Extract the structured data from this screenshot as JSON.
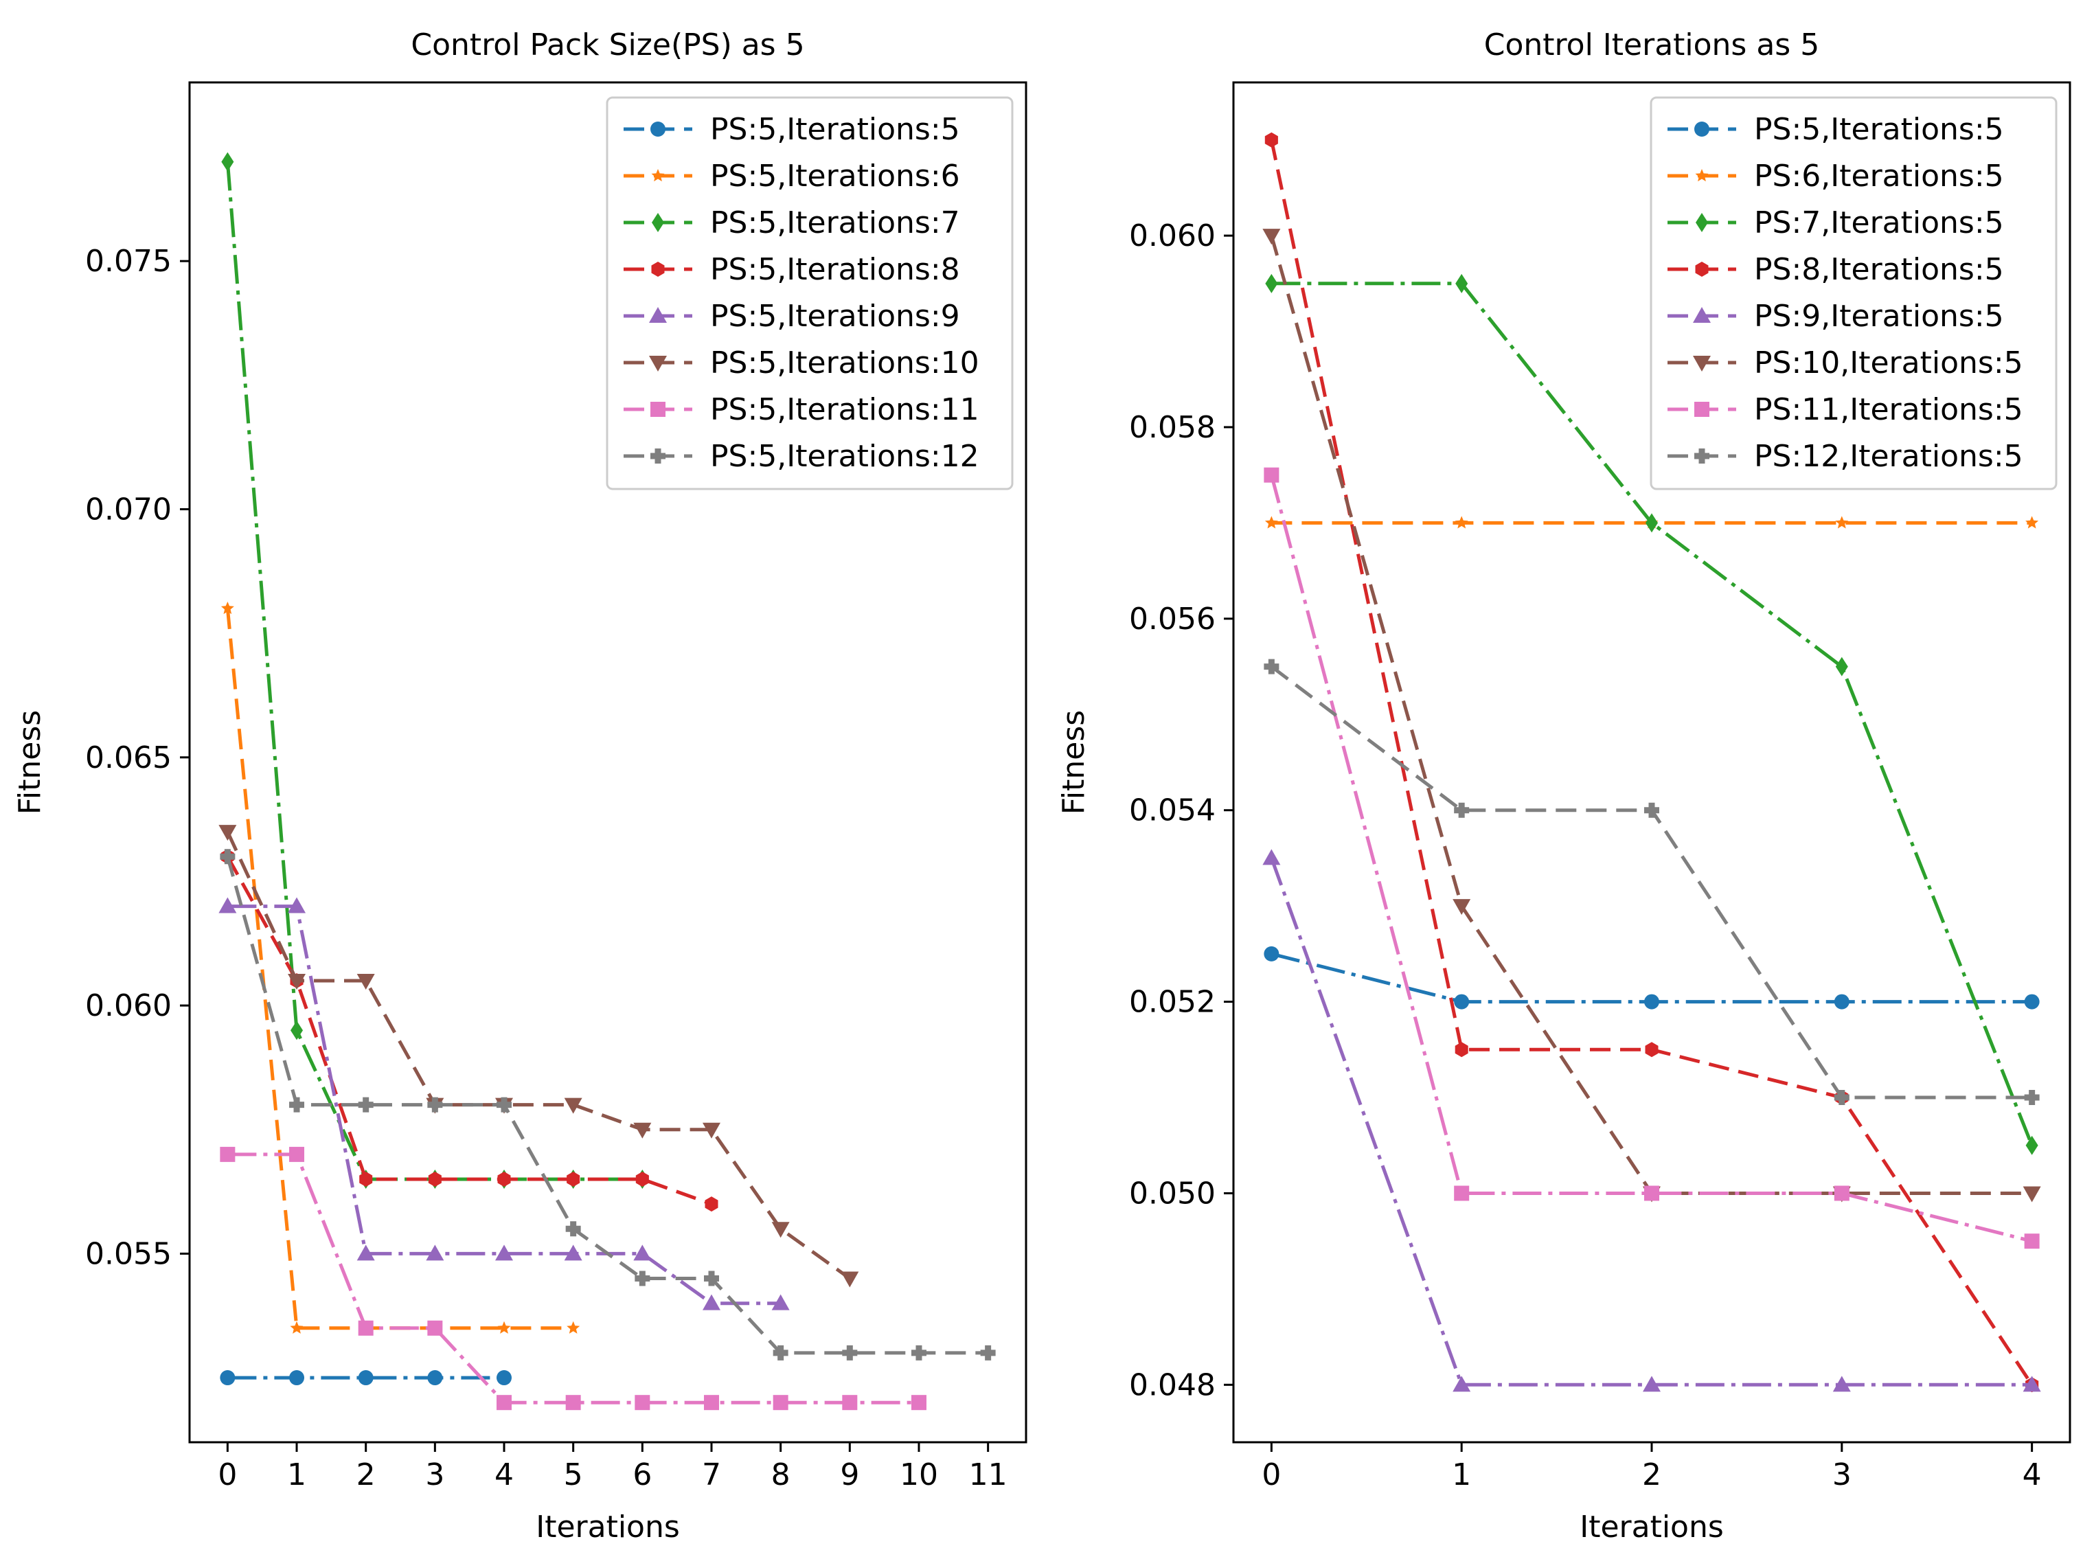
{
  "chart_data": [
    {
      "type": "line",
      "title": "Control Pack Size(PS) as 5",
      "xlabel": "Iterations",
      "ylabel": "Fitness",
      "xlim": [
        -0.55,
        11.55
      ],
      "ylim": [
        0.0512,
        0.0786
      ],
      "xticks": [
        0,
        1,
        2,
        3,
        4,
        5,
        6,
        7,
        8,
        9,
        10,
        11
      ],
      "xtick_labels": [
        "0",
        "1",
        "2",
        "3",
        "4",
        "5",
        "6",
        "7",
        "8",
        "9",
        "10",
        "11"
      ],
      "yticks": [
        0.055,
        0.06,
        0.065,
        0.07,
        0.075
      ],
      "ytick_labels": [
        "0.055",
        "0.060",
        "0.065",
        "0.070",
        "0.075"
      ],
      "grid": false,
      "legend_position": "top-right",
      "series": [
        {
          "name": "PS:5,Iterations:5",
          "color": "#1f77b4",
          "marker": "circle",
          "x": [
            0,
            1,
            2,
            3,
            4
          ],
          "values": [
            0.0525,
            0.0525,
            0.0525,
            0.0525,
            0.0525
          ]
        },
        {
          "name": "PS:5,Iterations:6",
          "color": "#ff7f0e",
          "marker": "star",
          "x": [
            0,
            1,
            2,
            3,
            4,
            5
          ],
          "values": [
            0.068,
            0.0535,
            0.0535,
            0.0535,
            0.0535,
            0.0535
          ]
        },
        {
          "name": "PS:5,Iterations:7",
          "color": "#2ca02c",
          "marker": "diamond",
          "x": [
            0,
            1,
            2,
            3,
            4,
            5,
            6
          ],
          "values": [
            0.077,
            0.0595,
            0.0565,
            0.0565,
            0.0565,
            0.0565,
            0.0565
          ]
        },
        {
          "name": "PS:5,Iterations:8",
          "color": "#d62728",
          "marker": "hexagon",
          "x": [
            0,
            1,
            2,
            3,
            4,
            5,
            6,
            7
          ],
          "values": [
            0.063,
            0.0605,
            0.0565,
            0.0565,
            0.0565,
            0.0565,
            0.0565,
            0.056
          ]
        },
        {
          "name": "PS:5,Iterations:9",
          "color": "#9467bd",
          "marker": "triangle-up",
          "x": [
            0,
            1,
            2,
            3,
            4,
            5,
            6,
            7,
            8
          ],
          "values": [
            0.062,
            0.062,
            0.055,
            0.055,
            0.055,
            0.055,
            0.055,
            0.054,
            0.054
          ]
        },
        {
          "name": "PS:5,Iterations:10",
          "color": "#8c564b",
          "marker": "triangle-down",
          "x": [
            0,
            1,
            2,
            3,
            4,
            5,
            6,
            7,
            8,
            9
          ],
          "values": [
            0.0635,
            0.0605,
            0.0605,
            0.058,
            0.058,
            0.058,
            0.0575,
            0.0575,
            0.0555,
            0.0545
          ]
        },
        {
          "name": "PS:5,Iterations:11",
          "color": "#e377c2",
          "marker": "square",
          "x": [
            0,
            1,
            2,
            3,
            4,
            5,
            6,
            7,
            8,
            9,
            10
          ],
          "values": [
            0.057,
            0.057,
            0.0535,
            0.0535,
            0.052,
            0.052,
            0.052,
            0.052,
            0.052,
            0.052,
            0.052
          ]
        },
        {
          "name": "PS:5,Iterations:12",
          "color": "#7f7f7f",
          "marker": "plus-filled",
          "x": [
            0,
            1,
            2,
            3,
            4,
            5,
            6,
            7,
            8,
            9,
            10,
            11
          ],
          "values": [
            0.063,
            0.058,
            0.058,
            0.058,
            0.058,
            0.0555,
            0.0545,
            0.0545,
            0.053,
            0.053,
            0.053,
            0.053
          ]
        }
      ]
    },
    {
      "type": "line",
      "title": "Control Iterations as 5",
      "xlabel": "Iterations",
      "ylabel": "Fitness",
      "xlim": [
        -0.2,
        4.2
      ],
      "ylim": [
        0.0474,
        0.0616
      ],
      "xticks": [
        0,
        1,
        2,
        3,
        4
      ],
      "xtick_labels": [
        "0",
        "1",
        "2",
        "3",
        "4"
      ],
      "yticks": [
        0.048,
        0.05,
        0.052,
        0.054,
        0.056,
        0.058,
        0.06
      ],
      "ytick_labels": [
        "0.048",
        "0.050",
        "0.052",
        "0.054",
        "0.056",
        "0.058",
        "0.060"
      ],
      "grid": false,
      "legend_position": "top-right",
      "series": [
        {
          "name": "PS:5,Iterations:5",
          "color": "#1f77b4",
          "marker": "circle",
          "x": [
            0,
            1,
            2,
            3,
            4
          ],
          "values": [
            0.0525,
            0.052,
            0.052,
            0.052,
            0.052
          ]
        },
        {
          "name": "PS:6,Iterations:5",
          "color": "#ff7f0e",
          "marker": "star",
          "x": [
            0,
            1,
            2,
            3,
            4
          ],
          "values": [
            0.057,
            0.057,
            0.057,
            0.057,
            0.057
          ]
        },
        {
          "name": "PS:7,Iterations:5",
          "color": "#2ca02c",
          "marker": "diamond",
          "x": [
            0,
            1,
            2,
            3,
            4
          ],
          "values": [
            0.0595,
            0.0595,
            0.057,
            0.0555,
            0.0505
          ]
        },
        {
          "name": "PS:8,Iterations:5",
          "color": "#d62728",
          "marker": "hexagon",
          "x": [
            0,
            1,
            2,
            3,
            4
          ],
          "values": [
            0.061,
            0.0515,
            0.0515,
            0.051,
            0.048
          ]
        },
        {
          "name": "PS:9,Iterations:5",
          "color": "#9467bd",
          "marker": "triangle-up",
          "x": [
            0,
            1,
            2,
            3,
            4
          ],
          "values": [
            0.0535,
            0.048,
            0.048,
            0.048,
            0.048
          ]
        },
        {
          "name": "PS:10,Iterations:5",
          "color": "#8c564b",
          "marker": "triangle-down",
          "x": [
            0,
            1,
            2,
            3,
            4
          ],
          "values": [
            0.06,
            0.053,
            0.05,
            0.05,
            0.05
          ]
        },
        {
          "name": "PS:11,Iterations:5",
          "color": "#e377c2",
          "marker": "square",
          "x": [
            0,
            1,
            2,
            3,
            4
          ],
          "values": [
            0.0575,
            0.05,
            0.05,
            0.05,
            0.0495
          ]
        },
        {
          "name": "PS:12,Iterations:5",
          "color": "#7f7f7f",
          "marker": "plus-filled",
          "x": [
            0,
            1,
            2,
            3,
            4
          ],
          "values": [
            0.0555,
            0.054,
            0.054,
            0.051,
            0.051
          ]
        }
      ]
    }
  ]
}
